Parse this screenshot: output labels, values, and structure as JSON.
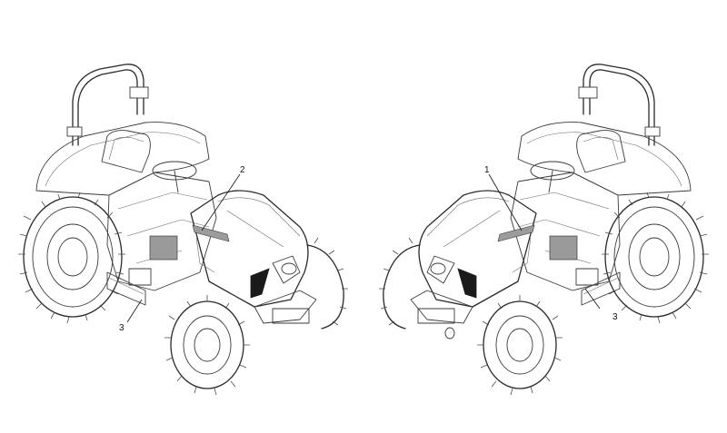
{
  "callouts": {
    "left_tractor": {
      "label_2": "2",
      "label_3": "3"
    },
    "right_tractor": {
      "label_1": "1",
      "label_3": "3"
    }
  }
}
